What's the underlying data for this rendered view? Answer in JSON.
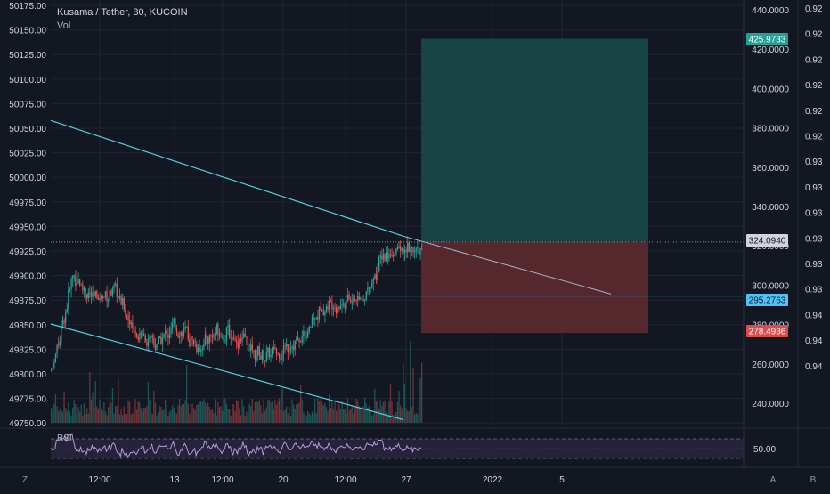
{
  "header": {
    "symbol_title": "Kusama / Tether, 30, KUCOIN",
    "volume_label": "Vol"
  },
  "colors": {
    "background": "#131722",
    "grid": "#1f2430",
    "up": "#26a69a",
    "down": "#ef5350",
    "trendline": "#4dd0e1",
    "horizontal_line": "#29b6f6",
    "profit_zone": "#184c4a",
    "loss_zone": "#5c2a2e",
    "rsi_line": "#b39ddb",
    "rsi_band": "#2a2640"
  },
  "chart_data": [
    {
      "type": "candlestick",
      "symbol": "Kusama / Tether",
      "interval": "30",
      "exchange": "KUCOIN",
      "x_tick_labels": [
        "12:00",
        "13",
        "12:00",
        "20",
        "12:00",
        "27",
        "2022",
        "5"
      ],
      "left_axis": {
        "range": [
          49750,
          50175
        ],
        "tick_labels": [
          "50175.00",
          "50150.00",
          "50125.00",
          "50100.00",
          "50075.00",
          "50050.00",
          "50025.00",
          "50000.00",
          "49975.00",
          "49950.00",
          "49925.00",
          "49900.00",
          "49875.00",
          "49850.00",
          "49825.00",
          "49800.00",
          "49775.00",
          "49750.00"
        ]
      },
      "right_axis": {
        "range": [
          230,
          440
        ],
        "tick_labels": [
          "440.0000",
          "420.0000",
          "400.0000",
          "380.0000",
          "360.0000",
          "340.0000",
          "320.0000",
          "300.0000",
          "280.0000",
          "260.0000",
          "240.0000"
        ]
      },
      "far_right_axis": {
        "tick_labels": [
          "0.92",
          "0.92",
          "0.92",
          "0.92",
          "0.92",
          "0.92",
          "0.93",
          "0.93",
          "0.93",
          "0.93",
          "0.93",
          "0.93",
          "0.94",
          "0.94",
          "0.94"
        ]
      },
      "price_labels": [
        {
          "name": "take-profit",
          "value": "425.9733"
        },
        {
          "name": "current-price",
          "value": "324.0940"
        },
        {
          "name": "entry",
          "value": "295.2763"
        },
        {
          "name": "stop-loss",
          "value": "278.4936"
        }
      ],
      "position": {
        "type": "long",
        "entry": 295.2763,
        "take_profit": 425.9733,
        "stop_loss": 278.4936,
        "current_price": 324.094
      },
      "trend_lines": [
        {
          "name": "upper-trendline",
          "from": {
            "date": "2021-12-10",
            "price": 385
          },
          "to": {
            "date": "2021-12-27",
            "price": 327
          }
        },
        {
          "name": "upper-trendline-extension",
          "from": {
            "date": "2021-12-27",
            "price": 327
          },
          "to": {
            "date": "2022-01-06",
            "price": 298
          }
        },
        {
          "name": "lower-trendline",
          "from": {
            "date": "2021-12-10",
            "price": 283
          },
          "to": {
            "date": "2021-12-27",
            "price": 235
          }
        }
      ],
      "horizontal_lines": [
        {
          "name": "entry-level",
          "price": 297
        }
      ],
      "price_path": [
        {
          "date": "2021-12-10",
          "price": 260
        },
        {
          "date": "2021-12-11",
          "price": 308
        },
        {
          "date": "2021-12-12",
          "price": 295
        },
        {
          "date": "2021-12-13",
          "price": 300
        },
        {
          "date": "2021-12-14",
          "price": 280
        },
        {
          "date": "2021-12-15",
          "price": 273
        },
        {
          "date": "2021-12-16",
          "price": 282
        },
        {
          "date": "2021-12-17",
          "price": 272
        },
        {
          "date": "2021-12-18",
          "price": 280
        },
        {
          "date": "2021-12-19",
          "price": 276
        },
        {
          "date": "2021-12-20",
          "price": 267
        },
        {
          "date": "2021-12-21",
          "price": 270
        },
        {
          "date": "2021-12-22",
          "price": 275
        },
        {
          "date": "2021-12-23",
          "price": 292
        },
        {
          "date": "2021-12-24",
          "price": 294
        },
        {
          "date": "2021-12-25",
          "price": 296
        },
        {
          "date": "2021-12-26",
          "price": 318
        },
        {
          "date": "2021-12-27",
          "price": 321
        }
      ],
      "volume_visible": true
    },
    {
      "type": "line",
      "name": "RSI",
      "level_label": "50.00"
    }
  ],
  "bottom_bar": {
    "left_button": "Z",
    "right_buttons": [
      "A",
      "B"
    ]
  }
}
